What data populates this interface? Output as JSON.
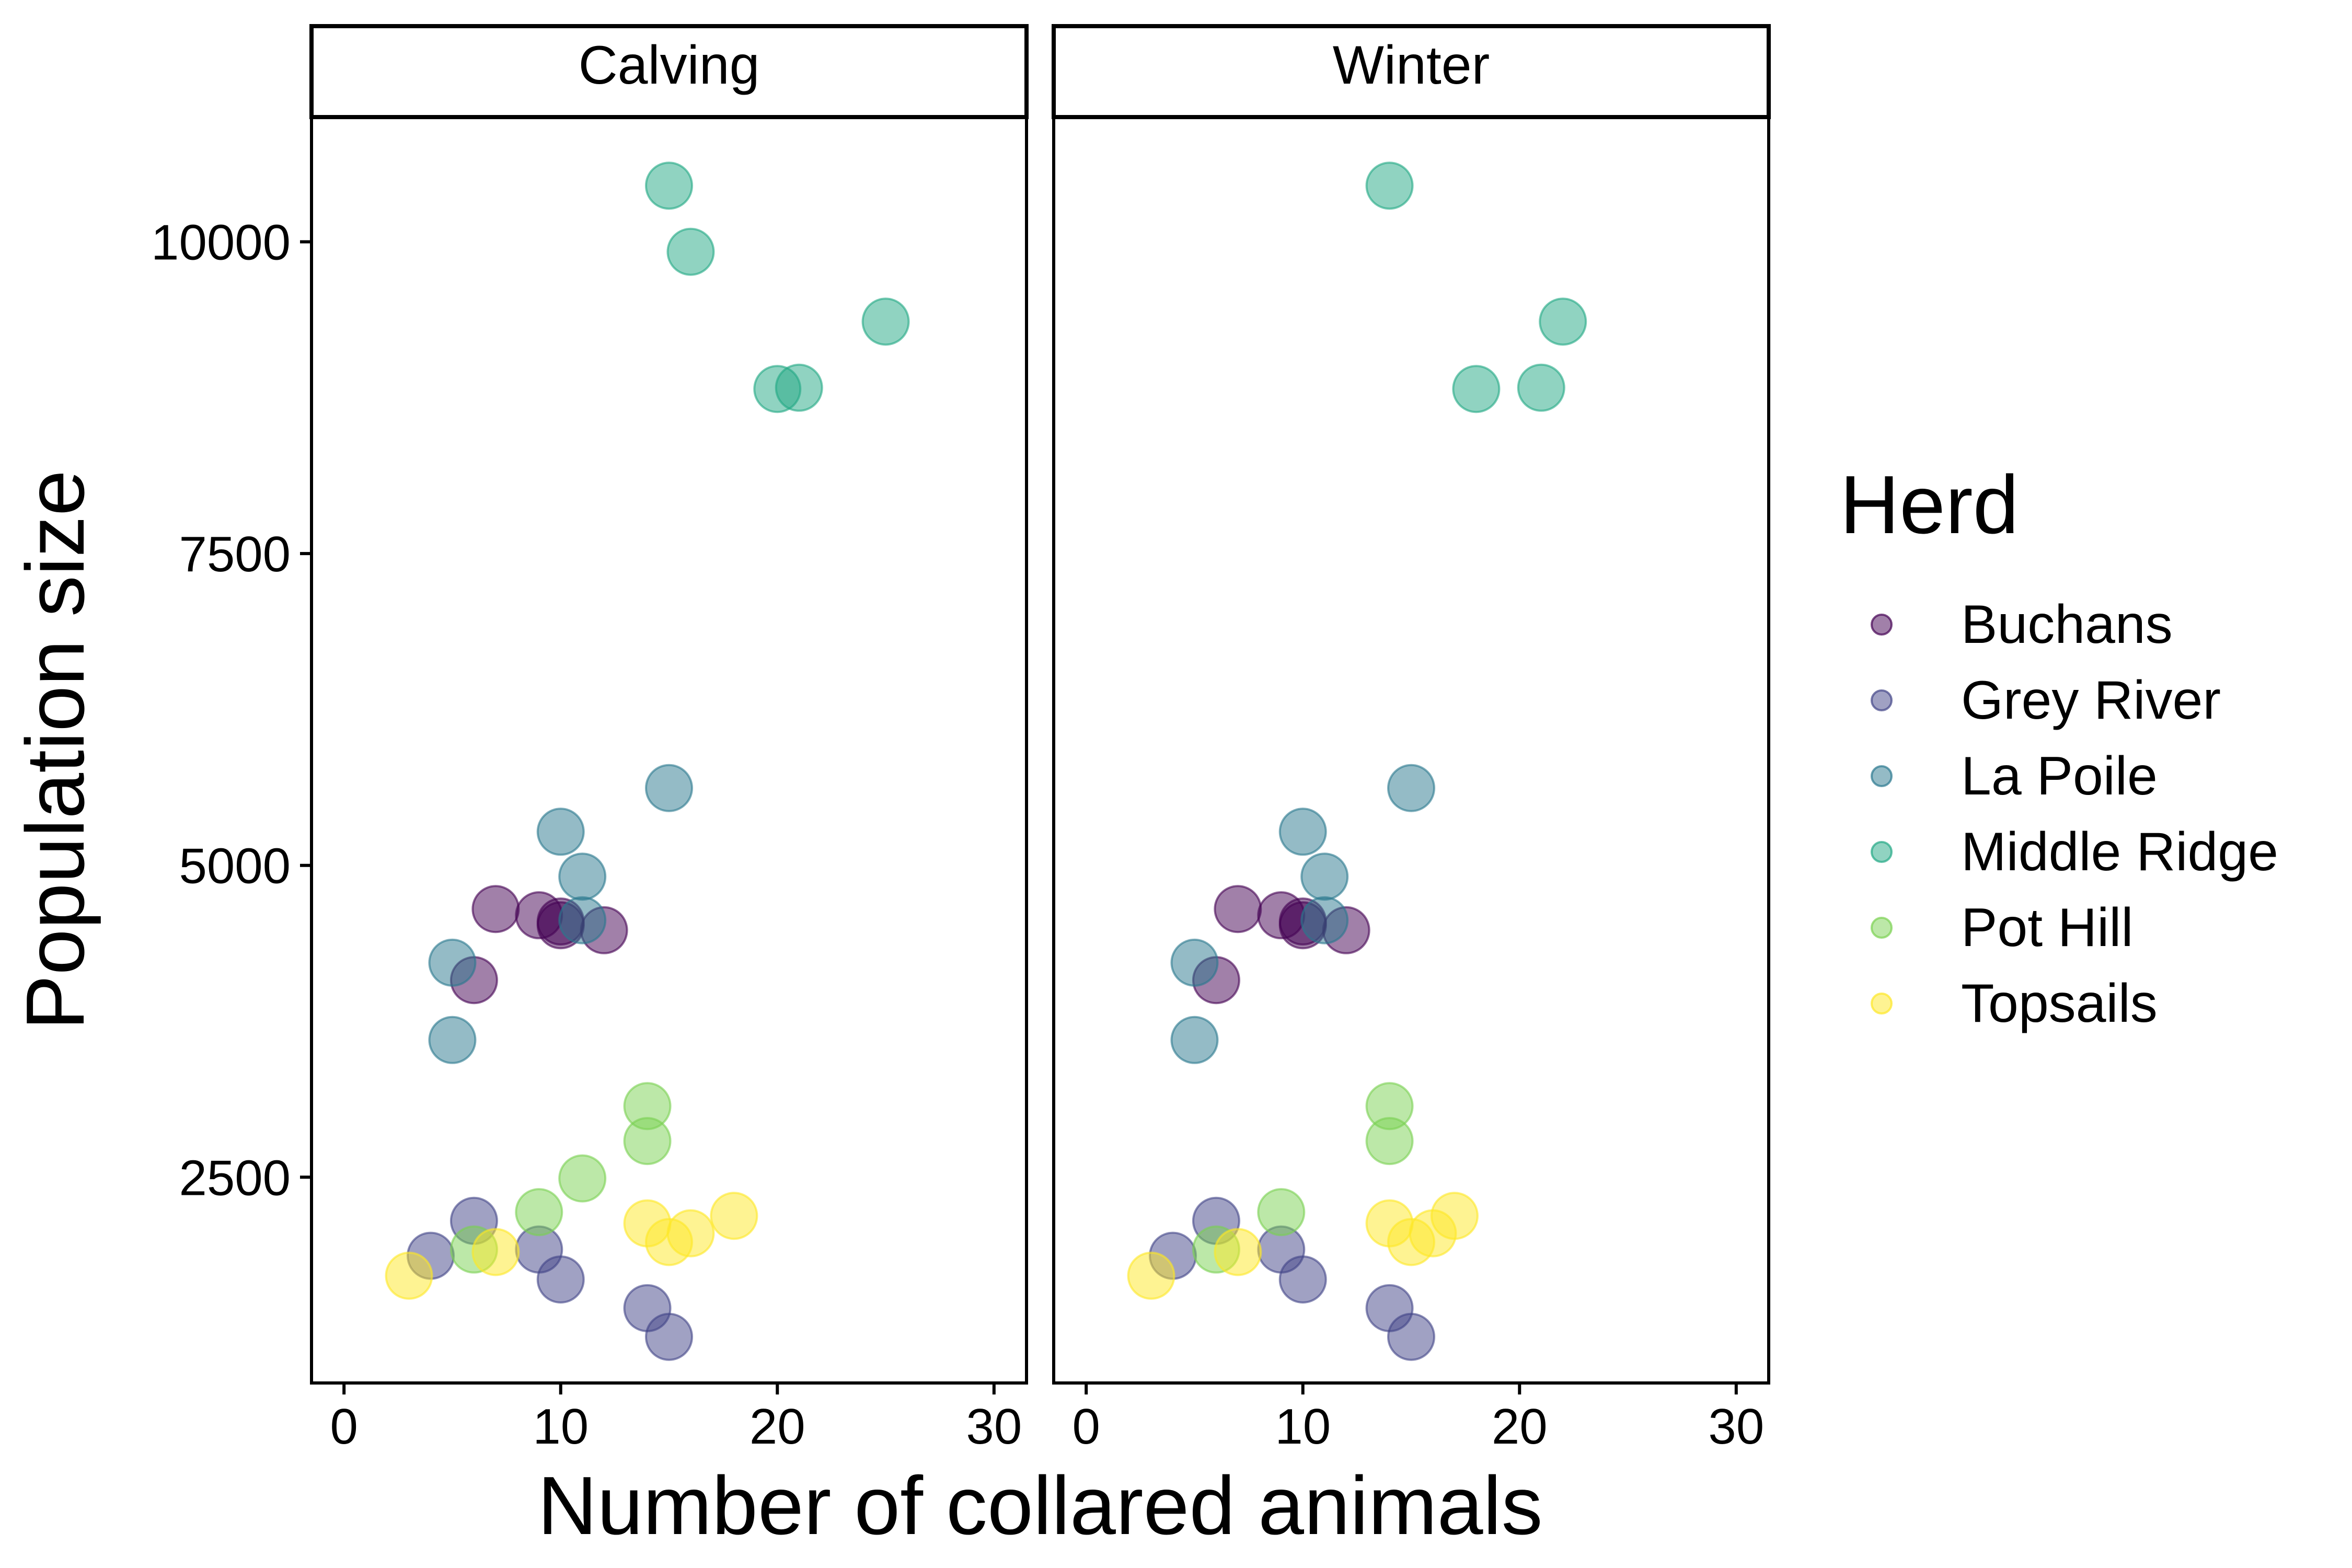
{
  "chart_data": {
    "type": "scatter",
    "xlabel": "Number of collared animals",
    "ylabel": "Population size",
    "xlim": [
      -1.5,
      31.5
    ],
    "ylim": [
      850,
      11000
    ],
    "x_ticks": [
      "0",
      "10",
      "20",
      "30"
    ],
    "y_ticks": [
      "2500",
      "5000",
      "7500",
      "10000"
    ],
    "grid": false,
    "legend": {
      "title": "Herd",
      "placement": "right"
    },
    "facets": [
      {
        "name": "Calving",
        "series": [
          {
            "name": "Buchans",
            "color": "#440154",
            "points": [
              [
                6,
                4080
              ],
              [
                7,
                4650
              ],
              [
                9,
                4600
              ],
              [
                10,
                4550
              ],
              [
                10,
                4520
              ],
              [
                12,
                4480
              ]
            ]
          },
          {
            "name": "Grey River",
            "color": "#414487",
            "points": [
              [
                4,
                1870
              ],
              [
                6,
                2150
              ],
              [
                9,
                1920
              ],
              [
                10,
                1680
              ],
              [
                14,
                1450
              ],
              [
                15,
                1220
              ]
            ]
          },
          {
            "name": "La Poile",
            "color": "#2A788E",
            "points": [
              [
                5,
                3600
              ],
              [
                5,
                4220
              ],
              [
                10,
                5270
              ],
              [
                11,
                4910
              ],
              [
                11,
                4560
              ],
              [
                15,
                5620
              ]
            ]
          },
          {
            "name": "Middle Ridge",
            "color": "#22A884",
            "points": [
              [
                15,
                10450
              ],
              [
                16,
                9920
              ],
              [
                20,
                8820
              ],
              [
                21,
                8830
              ],
              [
                25,
                9360
              ]
            ]
          },
          {
            "name": "Pot Hill",
            "color": "#7AD151",
            "points": [
              [
                6,
                1920
              ],
              [
                9,
                2220
              ],
              [
                11,
                2490
              ],
              [
                14,
                3070
              ],
              [
                14,
                2790
              ]
            ]
          },
          {
            "name": "Topsails",
            "color": "#FDE725",
            "points": [
              [
                3,
                1710
              ],
              [
                7,
                1900
              ],
              [
                14,
                2130
              ],
              [
                15,
                1980
              ],
              [
                16,
                2050
              ],
              [
                18,
                2190
              ]
            ]
          }
        ]
      },
      {
        "name": "Winter",
        "series": [
          {
            "name": "Buchans",
            "color": "#440154",
            "points": [
              [
                6,
                4080
              ],
              [
                7,
                4650
              ],
              [
                9,
                4600
              ],
              [
                10,
                4550
              ],
              [
                10,
                4520
              ],
              [
                12,
                4480
              ]
            ]
          },
          {
            "name": "Grey River",
            "color": "#414487",
            "points": [
              [
                4,
                1870
              ],
              [
                6,
                2150
              ],
              [
                9,
                1920
              ],
              [
                10,
                1680
              ],
              [
                14,
                1450
              ],
              [
                15,
                1220
              ]
            ]
          },
          {
            "name": "La Poile",
            "color": "#2A788E",
            "points": [
              [
                5,
                3600
              ],
              [
                5,
                4220
              ],
              [
                10,
                5270
              ],
              [
                11,
                4910
              ],
              [
                11,
                4560
              ],
              [
                15,
                5620
              ]
            ]
          },
          {
            "name": "Middle Ridge",
            "color": "#22A884",
            "points": [
              [
                14,
                10450
              ],
              [
                18,
                8820
              ],
              [
                21,
                8830
              ],
              [
                22,
                9360
              ]
            ]
          },
          {
            "name": "Pot Hill",
            "color": "#7AD151",
            "points": [
              [
                6,
                1920
              ],
              [
                9,
                2220
              ],
              [
                14,
                3070
              ],
              [
                14,
                2790
              ]
            ]
          },
          {
            "name": "Topsails",
            "color": "#FDE725",
            "points": [
              [
                3,
                1710
              ],
              [
                7,
                1900
              ],
              [
                14,
                2130
              ],
              [
                15,
                1980
              ],
              [
                16,
                2050
              ],
              [
                17,
                2190
              ]
            ]
          }
        ]
      }
    ]
  }
}
